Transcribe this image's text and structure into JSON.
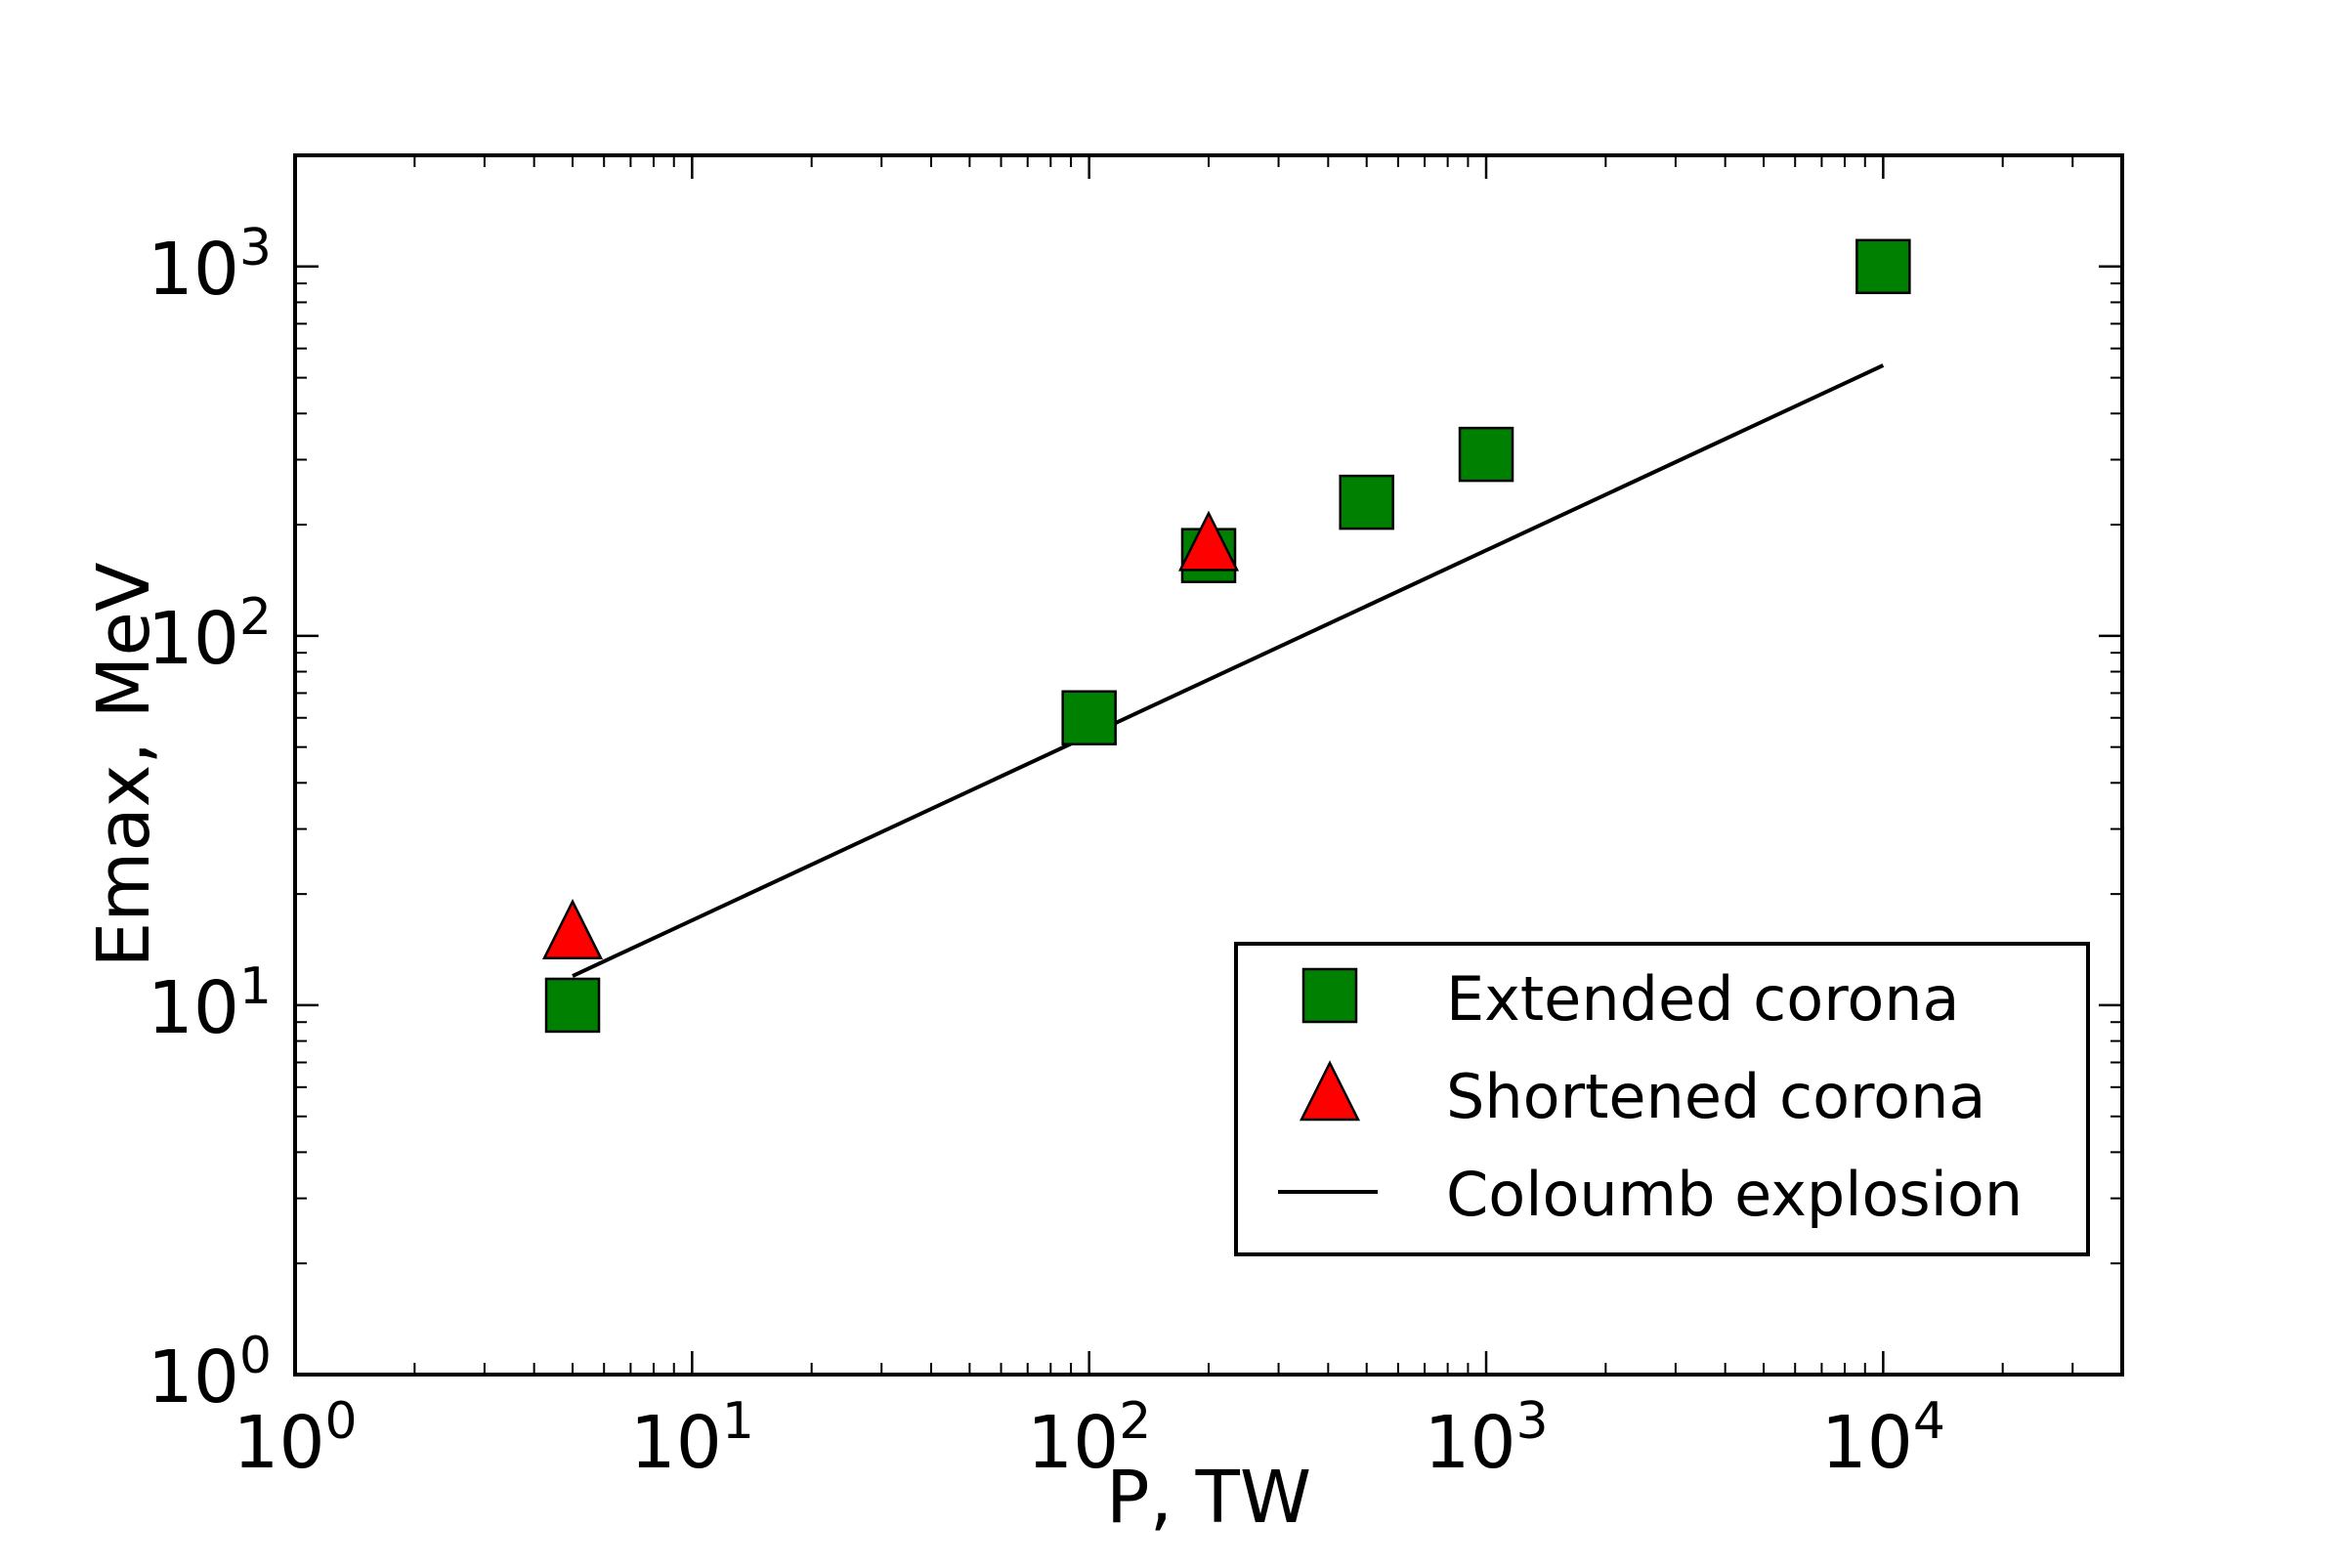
{
  "chart_data": {
    "type": "scatter",
    "title": "",
    "xlabel": "P, TW",
    "ylabel": "Emax, MeV",
    "xscale": "log",
    "yscale": "log",
    "xlim": [
      1,
      40000
    ],
    "ylim": [
      1,
      2000
    ],
    "grid": false,
    "x_ticks": [
      {
        "value": 1,
        "base": "10",
        "exp": "0"
      },
      {
        "value": 10,
        "base": "10",
        "exp": "1"
      },
      {
        "value": 100,
        "base": "10",
        "exp": "2"
      },
      {
        "value": 1000,
        "base": "10",
        "exp": "3"
      },
      {
        "value": 10000,
        "base": "10",
        "exp": "4"
      }
    ],
    "y_ticks": [
      {
        "value": 1,
        "base": "10",
        "exp": "0"
      },
      {
        "value": 10,
        "base": "10",
        "exp": "1"
      },
      {
        "value": 100,
        "base": "10",
        "exp": "2"
      },
      {
        "value": 1000,
        "base": "10",
        "exp": "3"
      }
    ],
    "series": [
      {
        "name": "Extended corona",
        "marker": "square",
        "color": "#008000",
        "points": [
          {
            "x": 5,
            "y": 10
          },
          {
            "x": 100,
            "y": 60
          },
          {
            "x": 200,
            "y": 165
          },
          {
            "x": 500,
            "y": 230
          },
          {
            "x": 1000,
            "y": 310
          },
          {
            "x": 10000,
            "y": 1000
          }
        ]
      },
      {
        "name": "Shortened corona",
        "marker": "triangle",
        "color": "#ff0000",
        "points": [
          {
            "x": 5,
            "y": 16
          },
          {
            "x": 200,
            "y": 180
          }
        ]
      },
      {
        "name": "Coloumb explosion",
        "marker": "line",
        "color": "#000000",
        "points": [
          {
            "x": 5,
            "y": 12
          },
          {
            "x": 10000,
            "y": 540
          }
        ]
      }
    ],
    "legend": {
      "position": "lower-right",
      "entries": [
        "Extended corona",
        "Shortened corona",
        "Coloumb explosion"
      ]
    }
  }
}
